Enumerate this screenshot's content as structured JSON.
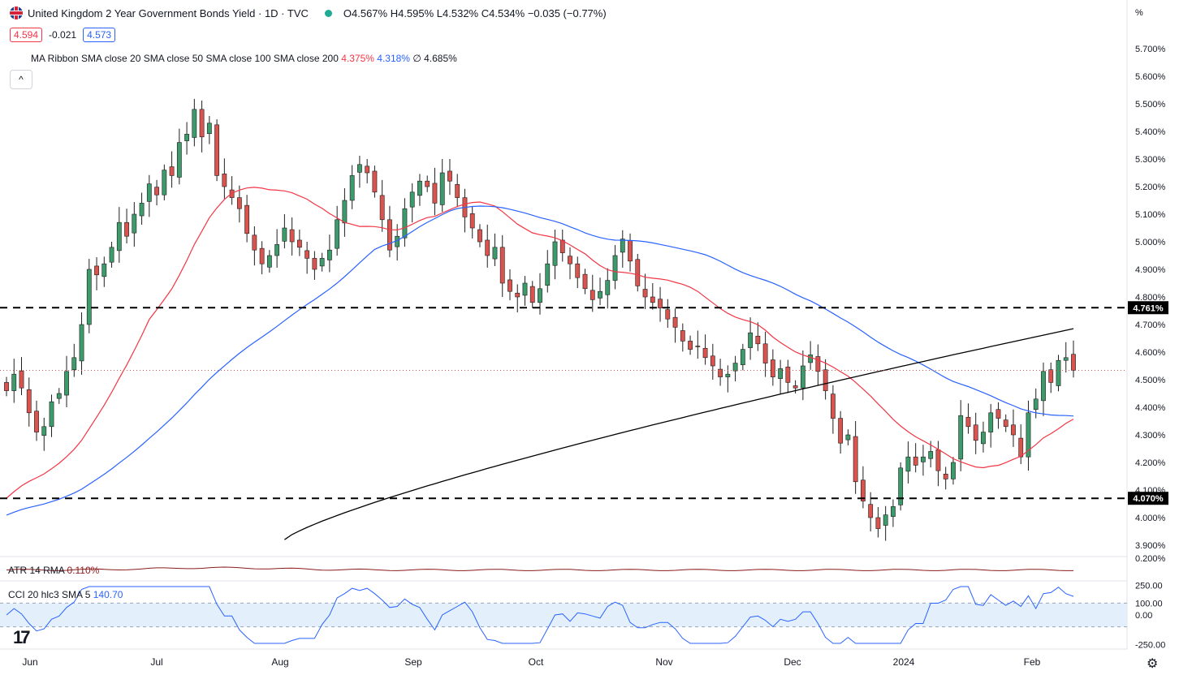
{
  "header": {
    "title": "United Kingdom 2 Year Government Bonds Yield · 1D · TVC",
    "ohlc": "O4.567% H4.595% L4.532% C4.534% −0.035 (−0.77%)",
    "bid": "4.594",
    "spread": "-0.021",
    "ask": "4.573",
    "ma_ribbon_label": "MA Ribbon SMA close 20 SMA close 50 SMA close 100 SMA close 200",
    "ma_val_1": "4.375%",
    "ma_val_2": "4.318%",
    "ma_val_3": "∅",
    "ma_val_4": "4.685%",
    "collapse_icon": "^",
    "axis_unit": "%"
  },
  "colors": {
    "up": "#3d9a6b",
    "down": "#d9534f",
    "sma20": "#f23645",
    "sma50": "#2962ff",
    "sma200": "#000000",
    "atr": "#8b1a1a",
    "cci": "#2962ff"
  },
  "chart_data": {
    "type": "candlestick",
    "y_axis_ticks": [
      "5.700%",
      "5.600%",
      "5.500%",
      "5.400%",
      "5.300%",
      "5.200%",
      "5.100%",
      "5.000%",
      "4.900%",
      "4.800%",
      "4.700%",
      "4.600%",
      "4.500%",
      "4.400%",
      "4.300%",
      "4.200%",
      "4.100%",
      "4.000%",
      "3.900%"
    ],
    "ylim": [
      3.88,
      5.8
    ],
    "x_axis_labels": [
      "Jun",
      "Jul",
      "Aug",
      "Sep",
      "Oct",
      "Nov",
      "Dec",
      "2024",
      "Feb"
    ],
    "horizontal_levels": [
      {
        "value": 4.761,
        "label": "4.761%"
      },
      {
        "value": 4.07,
        "label": "4.070%"
      }
    ],
    "last_price": 4.534,
    "close_series": [
      4.46,
      4.52,
      4.47,
      4.38,
      4.31,
      4.33,
      4.42,
      4.45,
      4.53,
      4.58,
      4.7,
      4.9,
      4.88,
      4.92,
      4.98,
      5.07,
      5.02,
      5.1,
      5.14,
      5.21,
      5.17,
      5.26,
      5.24,
      5.36,
      5.39,
      5.48,
      5.38,
      5.43,
      5.24,
      5.2,
      5.16,
      5.12,
      5.03,
      4.97,
      4.92,
      4.95,
      4.99,
      5.05,
      5.0,
      4.98,
      4.94,
      4.9,
      4.94,
      4.97,
      5.08,
      5.15,
      5.24,
      5.28,
      5.25,
      5.18,
      5.08,
      4.97,
      5.02,
      5.12,
      5.18,
      5.22,
      5.2,
      5.14,
      5.25,
      5.22,
      5.16,
      5.09,
      5.05,
      5.0,
      4.95,
      4.98,
      4.85,
      4.82,
      4.8,
      4.85,
      4.78,
      4.83,
      4.92,
      5.0,
      4.96,
      4.92,
      4.87,
      4.83,
      4.79,
      4.82,
      4.86,
      4.95,
      5.01,
      4.93,
      4.84,
      4.8,
      4.78,
      4.76,
      4.72,
      4.69,
      4.64,
      4.61,
      4.62,
      4.58,
      4.55,
      4.51,
      4.52,
      4.56,
      4.61,
      4.67,
      4.63,
      4.56,
      4.51,
      4.54,
      4.49,
      4.47,
      4.55,
      4.59,
      4.53,
      4.46,
      4.36,
      4.27,
      4.3,
      4.13,
      4.06,
      4.0,
      3.96,
      4.01,
      4.04,
      4.18,
      4.22,
      4.19,
      4.22,
      4.24,
      4.17,
      4.14,
      4.2,
      4.37,
      4.33,
      4.28,
      4.31,
      4.38,
      4.36,
      4.33,
      4.3,
      4.22,
      4.38,
      4.43,
      4.53,
      4.49,
      4.57,
      4.58,
      4.534
    ],
    "sma20_last": 4.375,
    "sma50_last": 4.318,
    "sma200_last": 4.685,
    "atr": {
      "label": "ATR 14 RMA",
      "value": "0.110%",
      "tick": "0.200%"
    },
    "cci": {
      "label": "CCI 20 hlc3 SMA 5",
      "value": "140.70",
      "ticks": [
        "250.00",
        "100.00",
        "0.00",
        "-250.00"
      ],
      "band": [
        -100,
        100
      ]
    }
  }
}
